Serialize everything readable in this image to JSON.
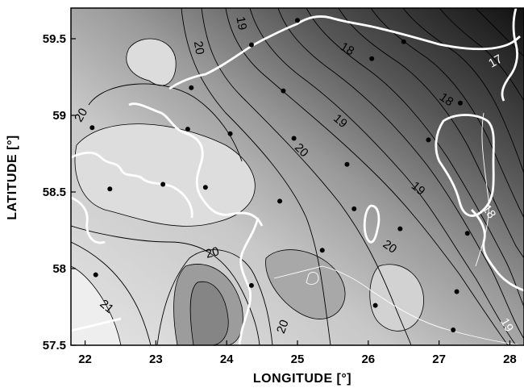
{
  "map": {
    "x_axis_title": "LONGITUDE [°]",
    "y_axis_title": "LATITUDE [°]",
    "x_range": [
      21.8,
      28.2
    ],
    "y_range": [
      57.5,
      59.7
    ],
    "x_ticks": [
      {
        "value": 22,
        "label": "22"
      },
      {
        "value": 23,
        "label": "23"
      },
      {
        "value": 24,
        "label": "24"
      },
      {
        "value": 25,
        "label": "25"
      },
      {
        "value": 26,
        "label": "26"
      },
      {
        "value": 27,
        "label": "27"
      },
      {
        "value": 28,
        "label": "28"
      }
    ],
    "y_ticks": [
      {
        "value": 57.5,
        "label": "57.5"
      },
      {
        "value": 58,
        "label": "58"
      },
      {
        "value": 58.5,
        "label": "58.5"
      },
      {
        "value": 59,
        "label": "59"
      },
      {
        "value": 59.5,
        "label": "59.5"
      }
    ],
    "contour_labels": [
      {
        "text": "19",
        "lon": 24.2,
        "lat": 59.6,
        "color": "#000000",
        "rotate": 80
      },
      {
        "text": "20",
        "lon": 23.6,
        "lat": 59.44,
        "color": "#000000",
        "rotate": 80
      },
      {
        "text": "18",
        "lon": 25.7,
        "lat": 59.43,
        "color": "#000000",
        "rotate": 30
      },
      {
        "text": "17",
        "lon": 27.8,
        "lat": 59.35,
        "color": "#ffffff",
        "rotate": -30
      },
      {
        "text": "18",
        "lon": 27.1,
        "lat": 59.1,
        "color": "#000000",
        "rotate": 35
      },
      {
        "text": "20",
        "lon": 21.95,
        "lat": 59.0,
        "color": "#000000",
        "rotate": -60
      },
      {
        "text": "19",
        "lon": 25.6,
        "lat": 58.96,
        "color": "#000000",
        "rotate": 40
      },
      {
        "text": "20",
        "lon": 25.05,
        "lat": 58.77,
        "color": "#000000",
        "rotate": 45
      },
      {
        "text": "19",
        "lon": 26.7,
        "lat": 58.52,
        "color": "#000000",
        "rotate": 40
      },
      {
        "text": "18",
        "lon": 27.7,
        "lat": 58.37,
        "color": "#ffffff",
        "rotate": 55
      },
      {
        "text": "20",
        "lon": 26.3,
        "lat": 58.14,
        "color": "#000000",
        "rotate": 35
      },
      {
        "text": "20",
        "lon": 23.8,
        "lat": 58.1,
        "color": "#000000",
        "rotate": -15
      },
      {
        "text": "21",
        "lon": 22.3,
        "lat": 57.75,
        "color": "#000000",
        "rotate": 40
      },
      {
        "text": "20",
        "lon": 24.8,
        "lat": 57.62,
        "color": "#000000",
        "rotate": -70
      },
      {
        "text": "19",
        "lon": 27.95,
        "lat": 57.63,
        "color": "#ffffff",
        "rotate": 60
      }
    ],
    "stations": [
      {
        "lon": 25.0,
        "lat": 59.62
      },
      {
        "lon": 26.5,
        "lat": 59.48
      },
      {
        "lon": 26.05,
        "lat": 59.37
      },
      {
        "lon": 24.35,
        "lat": 59.46
      },
      {
        "lon": 23.5,
        "lat": 59.18
      },
      {
        "lon": 24.8,
        "lat": 59.16
      },
      {
        "lon": 27.3,
        "lat": 59.08
      },
      {
        "lon": 22.1,
        "lat": 58.92
      },
      {
        "lon": 23.45,
        "lat": 58.91
      },
      {
        "lon": 24.05,
        "lat": 58.88
      },
      {
        "lon": 24.95,
        "lat": 58.85
      },
      {
        "lon": 26.85,
        "lat": 58.84
      },
      {
        "lon": 25.7,
        "lat": 58.68
      },
      {
        "lon": 23.1,
        "lat": 58.55
      },
      {
        "lon": 22.35,
        "lat": 58.52
      },
      {
        "lon": 23.7,
        "lat": 58.53
      },
      {
        "lon": 24.75,
        "lat": 58.44
      },
      {
        "lon": 25.8,
        "lat": 58.39
      },
      {
        "lon": 26.45,
        "lat": 58.26
      },
      {
        "lon": 27.4,
        "lat": 58.23
      },
      {
        "lon": 25.35,
        "lat": 58.12
      },
      {
        "lon": 22.15,
        "lat": 57.96
      },
      {
        "lon": 24.35,
        "lat": 57.89
      },
      {
        "lon": 27.25,
        "lat": 57.85
      },
      {
        "lon": 26.1,
        "lat": 57.76
      },
      {
        "lon": 27.2,
        "lat": 57.6
      }
    ],
    "colors": {
      "darkest": "#1a1a1a",
      "lightest": "#e8e8e8",
      "coastline": "#ffffff",
      "contour_line": "#000000",
      "station": "#000000"
    }
  }
}
